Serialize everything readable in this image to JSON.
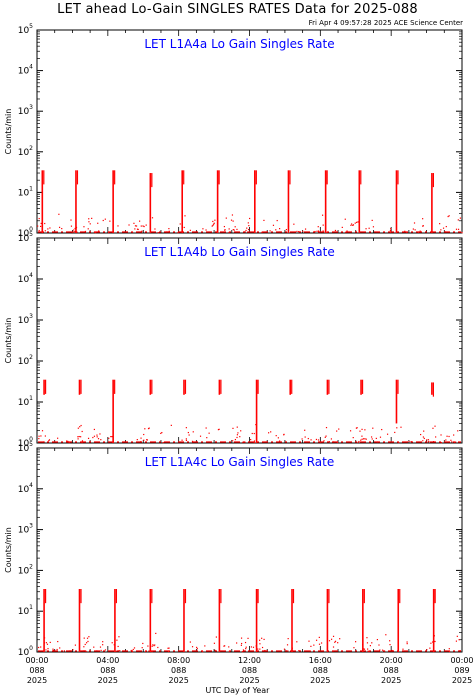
{
  "header": {
    "title": "LET ahead Lo-Gain SINGLES RATES Data for 2025-088",
    "timestamp": "Fri Apr  4 09:57:28 2025 ACE Science Center"
  },
  "colors": {
    "data": "#ff0000",
    "panel_title": "#0000ff",
    "axes": "#000000"
  },
  "chart_data": [
    {
      "type": "line",
      "title": "LET L1A4a Lo Gain Singles Rate",
      "ylabel": "Counts/min",
      "yscale": "log",
      "ylim": [
        1,
        100000
      ],
      "ytick_exponents": [
        "0",
        "1",
        "2",
        "3",
        "4",
        "5"
      ],
      "xlim": [
        0,
        24
      ],
      "spikes": [
        {
          "x": 0.3,
          "low": 1,
          "high": 35
        },
        {
          "x": 2.2,
          "low": 1,
          "high": 35
        },
        {
          "x": 4.3,
          "low": 1,
          "high": 35
        },
        {
          "x": 6.4,
          "low": 1,
          "high": 30
        },
        {
          "x": 8.2,
          "low": 1,
          "high": 35
        },
        {
          "x": 10.2,
          "low": 1,
          "high": 35
        },
        {
          "x": 12.3,
          "low": 1,
          "high": 35
        },
        {
          "x": 14.2,
          "low": 1,
          "high": 35
        },
        {
          "x": 16.3,
          "low": 1,
          "high": 35
        },
        {
          "x": 18.2,
          "low": 1,
          "high": 35
        },
        {
          "x": 20.3,
          "low": 1,
          "high": 35
        },
        {
          "x": 22.3,
          "low": 1,
          "high": 30
        }
      ]
    },
    {
      "type": "line",
      "title": "LET L1A4b Lo Gain Singles Rate",
      "ylabel": "Counts/min",
      "yscale": "log",
      "ylim": [
        1,
        100000
      ],
      "ytick_exponents": [
        "0",
        "1",
        "2",
        "3",
        "4",
        "5"
      ],
      "xlim": [
        0,
        24
      ],
      "spikes": [
        {
          "x": 0.4,
          "low": 15,
          "high": 35
        },
        {
          "x": 2.4,
          "low": 15,
          "high": 35
        },
        {
          "x": 4.3,
          "low": 1,
          "high": 35
        },
        {
          "x": 6.4,
          "low": 15,
          "high": 35
        },
        {
          "x": 8.3,
          "low": 15,
          "high": 35
        },
        {
          "x": 10.3,
          "low": 15,
          "high": 35
        },
        {
          "x": 12.4,
          "low": 1,
          "high": 35
        },
        {
          "x": 14.3,
          "low": 15,
          "high": 35
        },
        {
          "x": 16.4,
          "low": 15,
          "high": 35
        },
        {
          "x": 18.3,
          "low": 15,
          "high": 35
        },
        {
          "x": 20.3,
          "low": 3,
          "high": 35
        },
        {
          "x": 22.3,
          "low": 15,
          "high": 30
        }
      ]
    },
    {
      "type": "line",
      "title": "LET L1A4c Lo Gain Singles Rate",
      "ylabel": "Counts/min",
      "yscale": "log",
      "ylim": [
        1,
        100000
      ],
      "ytick_exponents": [
        "0",
        "1",
        "2",
        "3",
        "4",
        "5"
      ],
      "xlim": [
        0,
        24
      ],
      "xlabel": "UTC Day of Year",
      "xticks": [
        {
          "value": 0,
          "time": "00:00",
          "doy": "088",
          "year": "2025"
        },
        {
          "value": 4,
          "time": "04:00",
          "doy": "088",
          "year": "2025"
        },
        {
          "value": 8,
          "time": "08:00",
          "doy": "088",
          "year": "2025"
        },
        {
          "value": 12,
          "time": "12:00",
          "doy": "088",
          "year": "2025"
        },
        {
          "value": 16,
          "time": "16:00",
          "doy": "088",
          "year": "2025"
        },
        {
          "value": 20,
          "time": "20:00",
          "doy": "088",
          "year": "2025"
        },
        {
          "value": 24,
          "time": "00:00",
          "doy": "089",
          "year": "2025"
        }
      ],
      "spikes": [
        {
          "x": 0.4,
          "low": 1,
          "high": 35
        },
        {
          "x": 2.4,
          "low": 1,
          "high": 35
        },
        {
          "x": 4.4,
          "low": 1,
          "high": 35
        },
        {
          "x": 6.4,
          "low": 1,
          "high": 35
        },
        {
          "x": 8.3,
          "low": 1,
          "high": 35
        },
        {
          "x": 10.3,
          "low": 1,
          "high": 35
        },
        {
          "x": 12.4,
          "low": 1,
          "high": 35
        },
        {
          "x": 14.4,
          "low": 1,
          "high": 35
        },
        {
          "x": 16.4,
          "low": 1,
          "high": 35
        },
        {
          "x": 18.4,
          "low": 1,
          "high": 35
        },
        {
          "x": 20.4,
          "low": 1,
          "high": 35
        },
        {
          "x": 22.4,
          "low": 1,
          "high": 35
        }
      ]
    }
  ]
}
